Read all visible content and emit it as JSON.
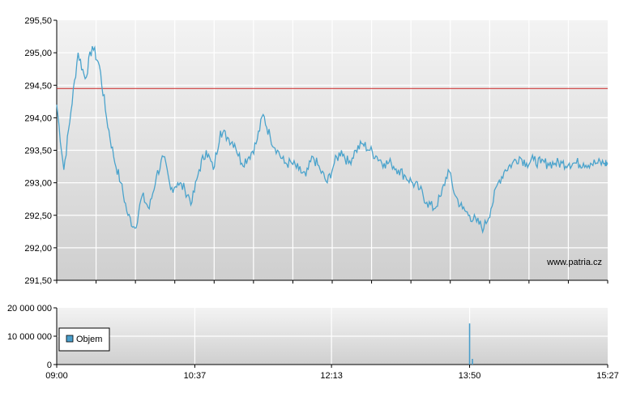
{
  "chart_data": [
    {
      "type": "line",
      "name": "price",
      "y_ticks": [
        "295,50",
        "295,00",
        "294,50",
        "294,00",
        "293,50",
        "293,00",
        "292,50",
        "292,00",
        "291,50"
      ],
      "ylim": [
        291.5,
        295.5
      ],
      "xlim": [
        "09:00",
        "15:27"
      ],
      "reference_line": 294.45,
      "watermark": "www.patria.cz",
      "colors": {
        "line": "#4aa3cc",
        "reference": "#cc2222",
        "grid": "#ffffff"
      },
      "series": [
        {
          "x": [
            "09:00",
            "09:05",
            "09:10",
            "09:15",
            "09:20",
            "09:25",
            "09:30",
            "09:35",
            "09:40",
            "09:45",
            "09:50",
            "09:55",
            "10:00",
            "10:05",
            "10:10",
            "10:15",
            "10:20",
            "10:25",
            "10:30",
            "10:35",
            "10:40",
            "10:45",
            "10:50",
            "10:55",
            "11:00",
            "11:05",
            "11:10",
            "11:15",
            "11:20",
            "11:25",
            "11:30",
            "11:35",
            "11:40",
            "11:45",
            "11:50",
            "11:55",
            "12:00",
            "12:05",
            "12:10",
            "12:15",
            "12:20",
            "12:25",
            "12:30",
            "12:35",
            "12:40",
            "12:45",
            "12:50",
            "12:55",
            "13:00",
            "13:05",
            "13:10",
            "13:15",
            "13:20",
            "13:25",
            "13:30",
            "13:35",
            "13:40",
            "13:45",
            "13:50",
            "13:55",
            "14:00",
            "14:05",
            "14:10",
            "14:15",
            "14:20",
            "14:25",
            "14:30",
            "14:35",
            "14:40",
            "14:45",
            "14:50",
            "14:55",
            "15:00",
            "15:05",
            "15:10",
            "15:15",
            "15:20",
            "15:25",
            "15:27"
          ],
          "y": [
            294.2,
            293.2,
            294.1,
            295.0,
            294.6,
            295.1,
            294.8,
            294.0,
            293.4,
            293.0,
            292.5,
            292.3,
            292.8,
            292.6,
            293.1,
            293.4,
            292.9,
            293.0,
            292.9,
            292.7,
            293.2,
            293.5,
            293.2,
            293.8,
            293.7,
            293.6,
            293.3,
            293.4,
            293.6,
            294.05,
            293.7,
            293.5,
            293.3,
            293.3,
            293.2,
            293.1,
            293.4,
            293.2,
            293.0,
            293.3,
            293.5,
            293.3,
            293.5,
            293.6,
            293.5,
            293.4,
            293.3,
            293.3,
            293.2,
            293.1,
            293.0,
            292.9,
            292.7,
            292.6,
            292.8,
            293.2,
            292.8,
            292.6,
            292.5,
            292.4,
            292.3,
            292.6,
            293.0,
            293.2,
            293.3,
            293.4,
            293.3,
            293.35,
            293.3,
            293.3,
            293.3,
            293.3,
            293.3,
            293.3,
            293.3,
            293.3,
            293.3,
            293.3,
            293.3
          ]
        }
      ]
    },
    {
      "type": "bar",
      "name": "volume",
      "y_ticks": [
        "20 000 000",
        "10 000 000",
        "0"
      ],
      "ylim": [
        0,
        20000000
      ],
      "x_ticks": [
        "09:00",
        "10:37",
        "12:13",
        "13:50",
        "15:27"
      ],
      "legend": "Objem",
      "colors": {
        "bar": "#4a9ecb"
      },
      "series": [
        {
          "name": "Objem",
          "x": [
            "13:50",
            "13:52"
          ],
          "values": [
            14500000,
            2000000
          ]
        }
      ]
    }
  ]
}
